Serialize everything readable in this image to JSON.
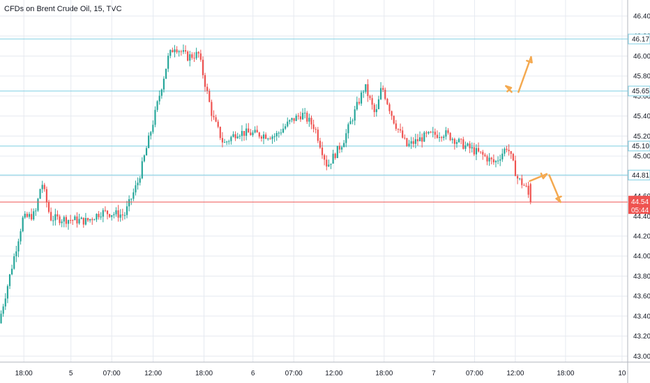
{
  "chart_data": {
    "type": "candlestick",
    "title": "CFDs on Brent Crude Oil, 15, TVC",
    "ylim": [
      42.94,
      46.56
    ],
    "y_ticks": [
      "46.40",
      "46.20",
      "46.00",
      "45.80",
      "45.60",
      "45.40",
      "45.20",
      "45.00",
      "44.80",
      "44.60",
      "44.40",
      "44.20",
      "44.00",
      "43.80",
      "43.60",
      "43.40",
      "43.20",
      "43.00"
    ],
    "x_ticks": [
      {
        "label": "18:00",
        "pos": 0.038
      },
      {
        "label": "5",
        "pos": 0.113
      },
      {
        "label": "07:00",
        "pos": 0.178
      },
      {
        "label": "12:00",
        "pos": 0.244
      },
      {
        "label": "18:00",
        "pos": 0.325
      },
      {
        "label": "6",
        "pos": 0.403
      },
      {
        "label": "07:00",
        "pos": 0.468
      },
      {
        "label": "12:00",
        "pos": 0.532
      },
      {
        "label": "18:00",
        "pos": 0.612
      },
      {
        "label": "7",
        "pos": 0.691
      },
      {
        "label": "07:00",
        "pos": 0.756
      },
      {
        "label": "12:00",
        "pos": 0.821
      },
      {
        "label": "18:00",
        "pos": 0.901
      },
      {
        "label": "10",
        "pos": 0.991
      }
    ],
    "horizontal_levels": [
      {
        "value": 46.17,
        "label": "46.17",
        "color": "#7fcfe3"
      },
      {
        "value": 45.65,
        "label": "45.65",
        "color": "#7fcfe3"
      },
      {
        "value": 45.1,
        "label": "45.10",
        "color": "#7fcfe3"
      },
      {
        "value": 44.81,
        "label": "44.81",
        "color": "#7fcfe3"
      }
    ],
    "last_price": {
      "value": 44.54,
      "label": "44.54",
      "countdown": "05:44",
      "color": "#ef5350"
    },
    "colors": {
      "up": "#26a69a",
      "down": "#ef5350",
      "grid": "#e6eaf0",
      "axis_text": "#131722",
      "arrow": "#f4a950"
    },
    "key_points": [
      {
        "t": 0.0,
        "price": 43.33
      },
      {
        "t": 0.038,
        "price": 44.37
      },
      {
        "t": 0.058,
        "price": 44.42
      },
      {
        "t": 0.068,
        "price": 44.75
      },
      {
        "t": 0.082,
        "price": 44.38
      },
      {
        "t": 0.14,
        "price": 44.35
      },
      {
        "t": 0.163,
        "price": 44.44
      },
      {
        "t": 0.2,
        "price": 44.41
      },
      {
        "t": 0.222,
        "price": 44.75
      },
      {
        "t": 0.248,
        "price": 45.4
      },
      {
        "t": 0.27,
        "price": 45.99
      },
      {
        "t": 0.28,
        "price": 46.1
      },
      {
        "t": 0.3,
        "price": 45.99
      },
      {
        "t": 0.318,
        "price": 46.02
      },
      {
        "t": 0.34,
        "price": 45.4
      },
      {
        "t": 0.358,
        "price": 45.12
      },
      {
        "t": 0.38,
        "price": 45.24
      },
      {
        "t": 0.41,
        "price": 45.22
      },
      {
        "t": 0.44,
        "price": 45.2
      },
      {
        "t": 0.465,
        "price": 45.35
      },
      {
        "t": 0.483,
        "price": 45.42
      },
      {
        "t": 0.503,
        "price": 45.29
      },
      {
        "t": 0.523,
        "price": 44.9
      },
      {
        "t": 0.548,
        "price": 45.14
      },
      {
        "t": 0.583,
        "price": 45.7
      },
      {
        "t": 0.6,
        "price": 45.4
      },
      {
        "t": 0.61,
        "price": 45.7
      },
      {
        "t": 0.63,
        "price": 45.34
      },
      {
        "t": 0.65,
        "price": 45.1
      },
      {
        "t": 0.68,
        "price": 45.2
      },
      {
        "t": 0.71,
        "price": 45.23
      },
      {
        "t": 0.74,
        "price": 45.11
      },
      {
        "t": 0.77,
        "price": 45.01
      },
      {
        "t": 0.79,
        "price": 44.93
      },
      {
        "t": 0.81,
        "price": 45.1
      },
      {
        "t": 0.826,
        "price": 44.78
      },
      {
        "t": 0.84,
        "price": 44.68
      },
      {
        "t": 0.847,
        "price": 44.54
      }
    ],
    "annotations": [
      {
        "type": "arrow",
        "from": [
          0.815,
          45.64
        ],
        "to": [
          0.806,
          45.7
        ]
      },
      {
        "type": "arrow",
        "from": [
          0.826,
          45.64
        ],
        "to": [
          0.846,
          45.99
        ]
      },
      {
        "type": "arrow",
        "from": [
          0.844,
          44.75
        ],
        "to": [
          0.871,
          44.82
        ]
      },
      {
        "type": "arrow",
        "from": [
          0.875,
          44.81
        ],
        "to": [
          0.893,
          44.54
        ]
      }
    ]
  }
}
